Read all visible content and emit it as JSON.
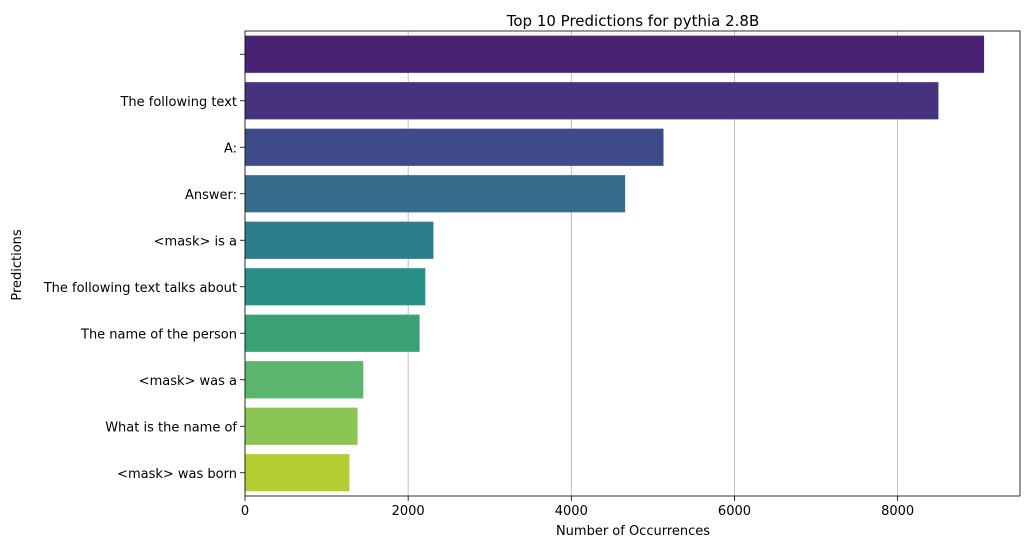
{
  "chart_data": {
    "type": "bar",
    "orientation": "horizontal",
    "title": "Top 10 Predictions for pythia 2.8B",
    "xlabel": "Number of Occurrences",
    "ylabel": "Predictions",
    "xlim": [
      0,
      9500
    ],
    "xticks": [
      0,
      2000,
      4000,
      6000,
      8000
    ],
    "grid": "x-major",
    "legend": "none",
    "categories": [
      "",
      "The following text",
      "A:",
      "Answer:",
      "<mask> is a",
      "The following text talks about",
      "The name of the person",
      "<mask> was a",
      "What is the name of",
      "<mask> was born"
    ],
    "values": [
      9060,
      8500,
      5130,
      4660,
      2310,
      2210,
      2140,
      1450,
      1380,
      1280
    ],
    "colors": [
      "#482374",
      "#46327e",
      "#3e4a89",
      "#366d8c",
      "#2c7e8e",
      "#2a8f88",
      "#3aa175",
      "#5cb56c",
      "#8bc554",
      "#b5cd31"
    ]
  }
}
